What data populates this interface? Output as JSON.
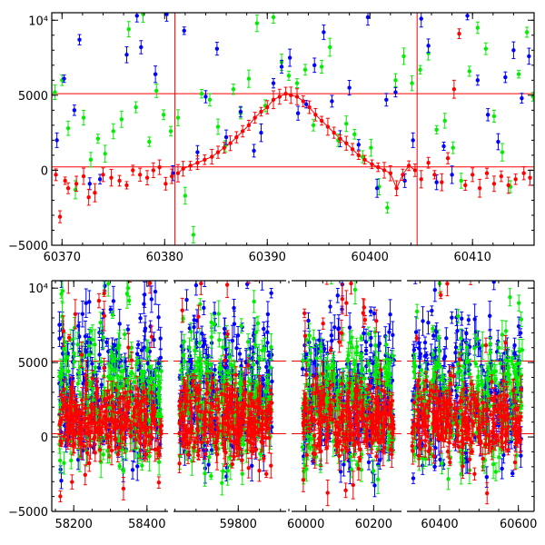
{
  "chart_data": [
    {
      "type": "scatter",
      "title": "",
      "xlabel": "",
      "ylabel": "",
      "xlim": [
        60369,
        60416
      ],
      "ylim": [
        -5000,
        10500
      ],
      "grid": false,
      "x_ticks": [
        60370,
        60380,
        60390,
        60400,
        60410
      ],
      "x_tick_labels": [
        "60370",
        "60380",
        "60390",
        "60400",
        "60410"
      ],
      "y_ticks": [
        -5000,
        0,
        5000,
        10000
      ],
      "y_tick_labels": [
        "−5000",
        "0",
        "5000",
        "10⁴"
      ],
      "hlines": [
        5100,
        220
      ],
      "vlines": [
        60381,
        60404.6
      ],
      "series_colors": {
        "red": "#ff0000",
        "green": "#00ee00",
        "blue": "#0000ff"
      },
      "series": [
        {
          "color": "#ff0000",
          "points": [
            [
              60369.4,
              -300
            ],
            [
              60369.8,
              -3100
            ],
            [
              60370.3,
              -700
            ],
            [
              60370.6,
              -1200
            ],
            [
              60371.4,
              -900
            ],
            [
              60372.1,
              -400
            ],
            [
              60372.6,
              -1800
            ],
            [
              60373.2,
              -1500
            ],
            [
              60374.0,
              -300
            ],
            [
              60374.8,
              -500
            ],
            [
              60375.6,
              -700
            ],
            [
              60376.3,
              -1000
            ],
            [
              60376.9,
              0
            ],
            [
              60377.6,
              -300
            ],
            [
              60378.3,
              -500
            ],
            [
              60378.9,
              0
            ],
            [
              60379.5,
              200
            ],
            [
              60380.1,
              -900
            ],
            [
              60380.7,
              -400
            ],
            [
              60381.3,
              -200
            ],
            [
              60381.8,
              100
            ],
            [
              60382.5,
              300
            ],
            [
              60383.2,
              500
            ],
            [
              60383.9,
              700
            ],
            [
              60384.6,
              900
            ],
            [
              60385.2,
              1200
            ],
            [
              60385.8,
              1500
            ],
            [
              60386.4,
              1800
            ],
            [
              60387.0,
              2200
            ],
            [
              60387.6,
              2600
            ],
            [
              60388.2,
              3000
            ],
            [
              60388.8,
              3500
            ],
            [
              60389.4,
              3900
            ],
            [
              60390.0,
              4200
            ],
            [
              60390.6,
              4700
            ],
            [
              60391.2,
              4900
            ],
            [
              60391.8,
              5100
            ],
            [
              60392.3,
              5000
            ],
            [
              60392.9,
              4900
            ],
            [
              60393.5,
              4600
            ],
            [
              60394.1,
              4200
            ],
            [
              60394.7,
              3700
            ],
            [
              60395.3,
              3300
            ],
            [
              60395.9,
              2900
            ],
            [
              60396.5,
              2500
            ],
            [
              60397.1,
              2100
            ],
            [
              60397.7,
              1800
            ],
            [
              60398.3,
              1400
            ],
            [
              60398.9,
              1000
            ],
            [
              60399.5,
              700
            ],
            [
              60400.2,
              400
            ],
            [
              60400.8,
              200
            ],
            [
              60401.4,
              0
            ],
            [
              60402.0,
              -200
            ],
            [
              60402.6,
              -1200
            ],
            [
              60403.2,
              -300
            ],
            [
              60403.8,
              300
            ],
            [
              60404.4,
              0
            ],
            [
              60405.0,
              -600
            ],
            [
              60405.7,
              500
            ],
            [
              60406.3,
              -300
            ],
            [
              60407.0,
              -800
            ],
            [
              60407.6,
              800
            ],
            [
              60408.2,
              5400
            ],
            [
              60408.7,
              9100
            ],
            [
              60409.3,
              -1000
            ],
            [
              60410.0,
              -300
            ],
            [
              60410.7,
              -1200
            ],
            [
              60411.4,
              -200
            ],
            [
              60412.1,
              -900
            ],
            [
              60412.8,
              -400
            ],
            [
              60413.5,
              -1000
            ],
            [
              60414.2,
              -600
            ],
            [
              60415.0,
              -200
            ],
            [
              60415.6,
              -500
            ]
          ]
        },
        {
          "color": "#00ee00",
          "points": [
            [
              60369.3,
              5200
            ],
            [
              60370.0,
              6000
            ],
            [
              60370.6,
              2800
            ],
            [
              60371.3,
              -1300
            ],
            [
              60372.1,
              3500
            ],
            [
              60372.8,
              700
            ],
            [
              60373.5,
              2100
            ],
            [
              60374.2,
              1100
            ],
            [
              60375.0,
              2600
            ],
            [
              60375.8,
              3400
            ],
            [
              60376.5,
              9400
            ],
            [
              60377.2,
              4200
            ],
            [
              60377.9,
              10400
            ],
            [
              60378.5,
              1900
            ],
            [
              60379.2,
              5300
            ],
            [
              60379.9,
              3700
            ],
            [
              60380.6,
              2600
            ],
            [
              60381.3,
              3500
            ],
            [
              60382.0,
              -1700
            ],
            [
              60382.8,
              -4300
            ],
            [
              60383.6,
              5100
            ],
            [
              60384.4,
              4700
            ],
            [
              60385.2,
              2900
            ],
            [
              60385.9,
              1600
            ],
            [
              60386.7,
              5400
            ],
            [
              60387.4,
              3800
            ],
            [
              60388.2,
              6100
            ],
            [
              60389.0,
              9800
            ],
            [
              60389.8,
              4300
            ],
            [
              60390.6,
              10200
            ],
            [
              60391.4,
              7200
            ],
            [
              60392.1,
              6300
            ],
            [
              60392.9,
              5800
            ],
            [
              60393.7,
              6700
            ],
            [
              60394.5,
              3000
            ],
            [
              60395.3,
              6900
            ],
            [
              60396.1,
              8200
            ],
            [
              60396.9,
              2000
            ],
            [
              60397.7,
              3100
            ],
            [
              60398.5,
              2400
            ],
            [
              60399.3,
              900
            ],
            [
              60400.1,
              1500
            ],
            [
              60400.9,
              -1100
            ],
            [
              60401.7,
              -2500
            ],
            [
              60402.5,
              6000
            ],
            [
              60403.3,
              7600
            ],
            [
              60404.1,
              5800
            ],
            [
              60404.9,
              6700
            ],
            [
              60405.7,
              7800
            ],
            [
              60406.5,
              2700
            ],
            [
              60407.3,
              3300
            ],
            [
              60408.1,
              1500
            ],
            [
              60408.9,
              -700
            ],
            [
              60409.7,
              6600
            ],
            [
              60410.5,
              9500
            ],
            [
              60411.3,
              8100
            ],
            [
              60412.1,
              3600
            ],
            [
              60412.9,
              1200
            ],
            [
              60413.7,
              -1100
            ],
            [
              60414.5,
              6400
            ],
            [
              60415.3,
              9200
            ],
            [
              60415.9,
              4900
            ]
          ]
        },
        {
          "color": "#0000ff",
          "points": [
            [
              60369.5,
              2000
            ],
            [
              60370.2,
              6100
            ],
            [
              60371.2,
              4000
            ],
            [
              60371.7,
              8700
            ],
            [
              60372.7,
              -900
            ],
            [
              60373.7,
              -600
            ],
            [
              60376.3,
              7700
            ],
            [
              60377.3,
              10300
            ],
            [
              60377.7,
              8200
            ],
            [
              60379.1,
              6400
            ],
            [
              60380.2,
              10400
            ],
            [
              60380.8,
              -200
            ],
            [
              60381.9,
              9300
            ],
            [
              60383.2,
              1200
            ],
            [
              60384.0,
              4900
            ],
            [
              60385.1,
              8100
            ],
            [
              60386.0,
              2200
            ],
            [
              60387.4,
              3900
            ],
            [
              60388.7,
              1300
            ],
            [
              60389.4,
              2500
            ],
            [
              60390.6,
              5800
            ],
            [
              60391.4,
              6900
            ],
            [
              60392.2,
              7500
            ],
            [
              60393.0,
              3800
            ],
            [
              60393.8,
              4400
            ],
            [
              60394.6,
              7000
            ],
            [
              60395.5,
              9200
            ],
            [
              60396.3,
              4600
            ],
            [
              60397.1,
              2100
            ],
            [
              60398.0,
              5500
            ],
            [
              60398.9,
              1700
            ],
            [
              60399.8,
              10200
            ],
            [
              60400.7,
              -1200
            ],
            [
              60401.6,
              4700
            ],
            [
              60402.5,
              5200
            ],
            [
              60403.4,
              -700
            ],
            [
              60404.2,
              2000
            ],
            [
              60405.0,
              10100
            ],
            [
              60405.7,
              8300
            ],
            [
              60406.5,
              -800
            ],
            [
              60407.2,
              1600
            ],
            [
              60408.0,
              -300
            ],
            [
              60409.5,
              10300
            ],
            [
              60410.5,
              6000
            ],
            [
              60411.5,
              3700
            ],
            [
              60412.5,
              1900
            ],
            [
              60413.2,
              6200
            ],
            [
              60414.0,
              8000
            ],
            [
              60414.8,
              4800
            ],
            [
              60415.5,
              7600
            ]
          ]
        }
      ]
    },
    {
      "type": "scatter",
      "title": "",
      "xlabel": "",
      "ylabel": "",
      "x_segments": [
        {
          "range": [
            58140,
            58465
          ],
          "ticks": [
            58200,
            58400
          ],
          "tick_labels": [
            "58200",
            "58400"
          ]
        },
        {
          "range": [
            59640,
            59920
          ],
          "ticks": [
            59800
          ],
          "tick_labels": [
            "59800"
          ]
        },
        {
          "range": [
            59950,
            60290
          ],
          "ticks": [
            60000,
            60200
          ],
          "tick_labels": [
            "60000",
            "60200"
          ]
        },
        {
          "range": [
            60310,
            60640
          ],
          "ticks": [
            60400,
            60600
          ],
          "tick_labels": [
            "60400",
            "60600"
          ]
        }
      ],
      "ylim": [
        -5000,
        10500
      ],
      "grid": false,
      "y_ticks": [
        -5000,
        0,
        5000,
        10000
      ],
      "y_tick_labels": [
        "−5000",
        "0",
        "5000",
        "10⁴"
      ],
      "hlines": [
        5100,
        220
      ],
      "observing_seasons": [
        [
          58160,
          58440
        ],
        [
          59660,
          59880
        ],
        [
          59990,
          60260
        ],
        [
          60330,
          60610
        ]
      ],
      "series": [
        {
          "color": "#0000ff",
          "median": 3000,
          "spread": 3500
        },
        {
          "color": "#00ee00",
          "median": 2500,
          "spread": 3000
        },
        {
          "color": "#ff0000",
          "median": 1200,
          "spread": 1700
        }
      ]
    }
  ]
}
